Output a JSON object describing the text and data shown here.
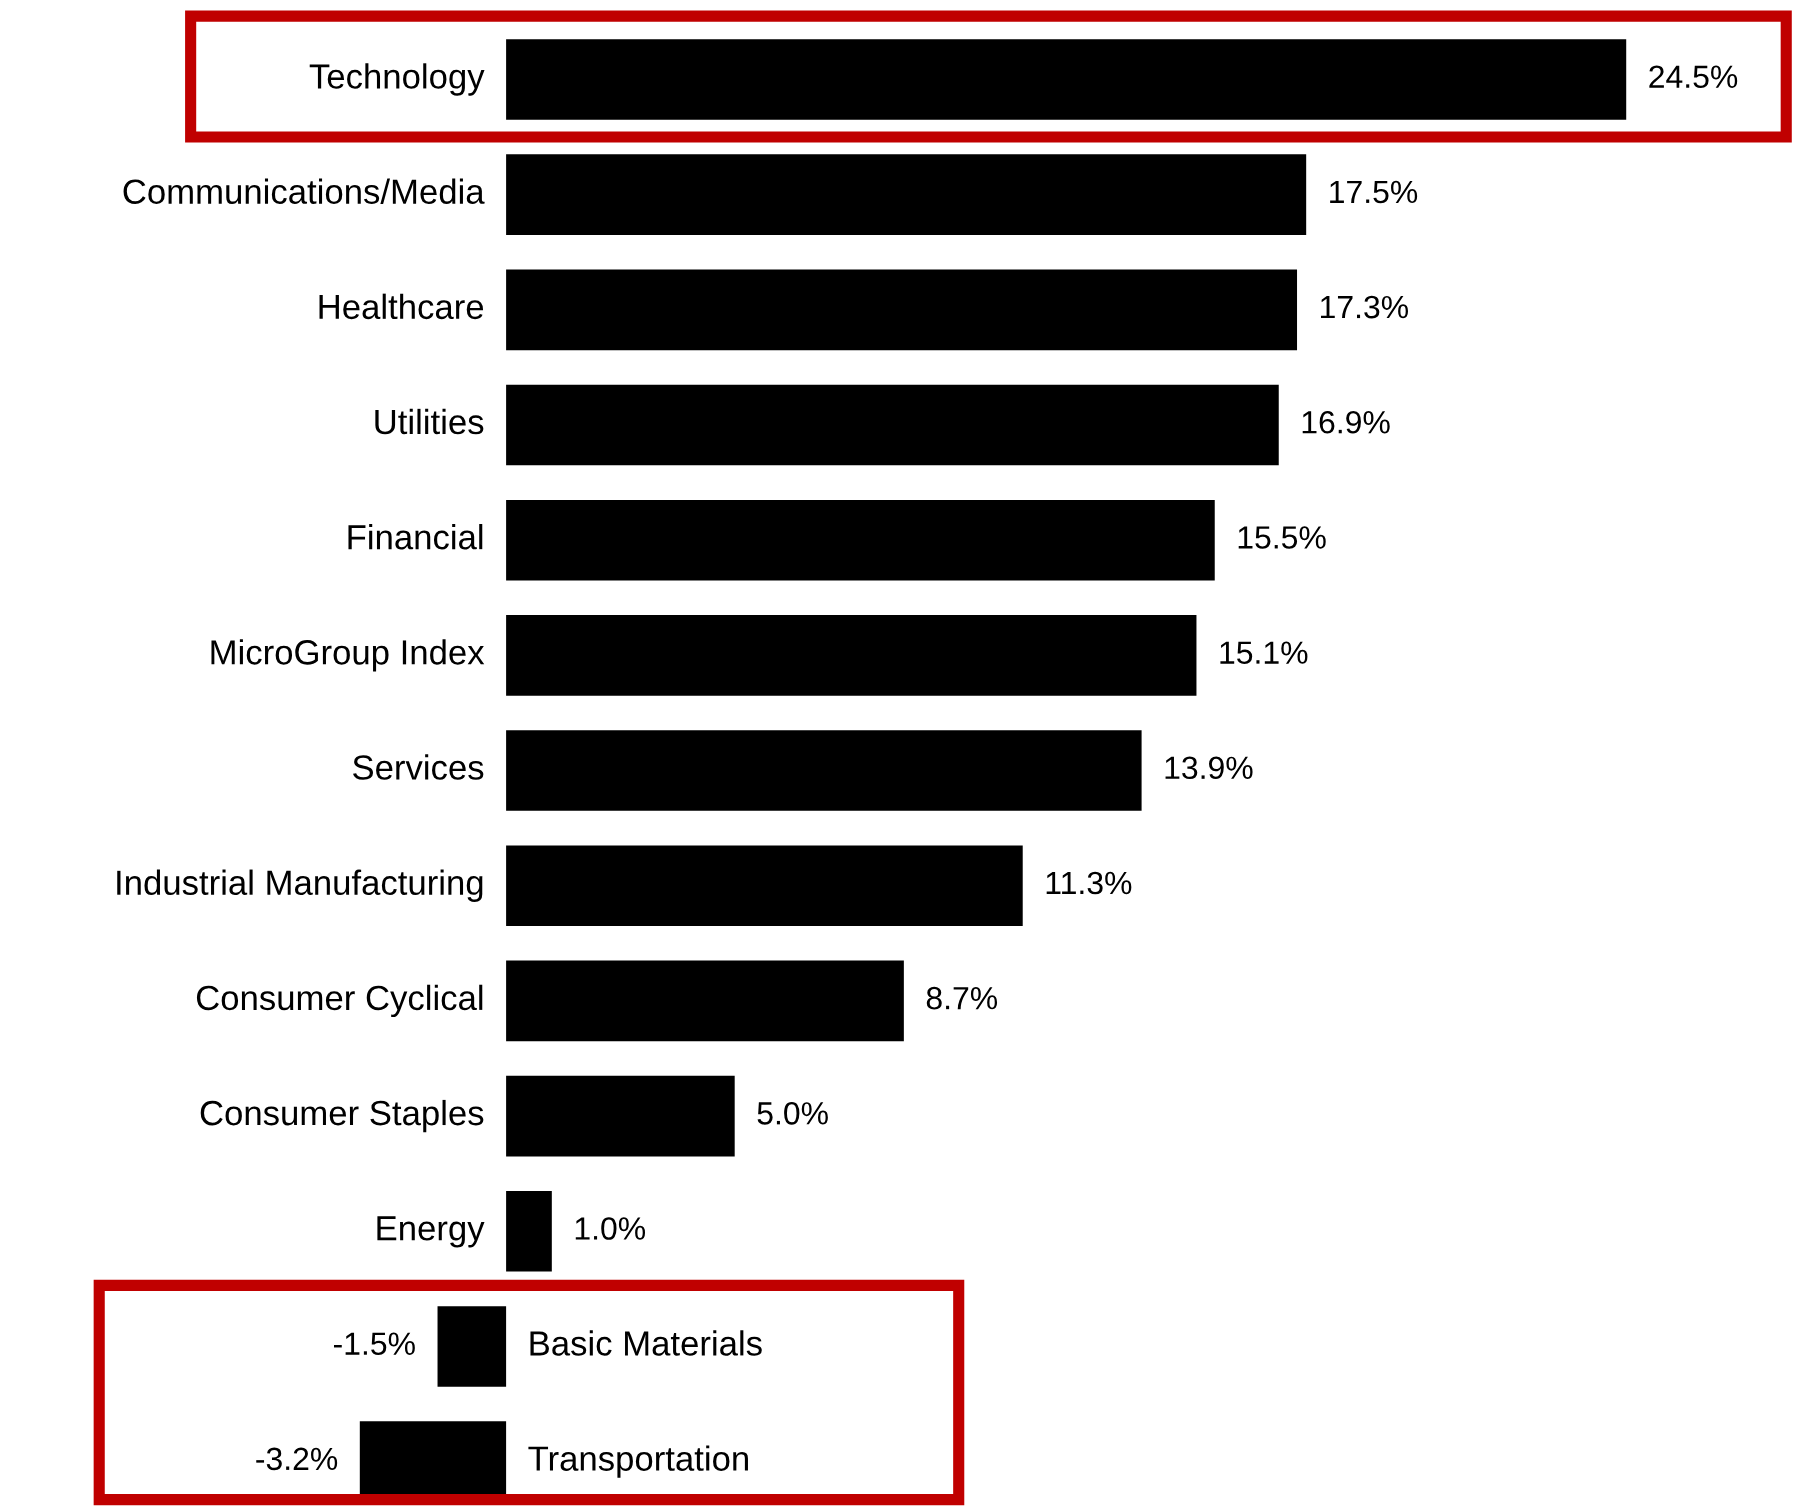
{
  "chart_data": {
    "type": "bar",
    "orientation": "horizontal",
    "categories": [
      "Technology",
      "Communications/Media",
      "Healthcare",
      "Utilities",
      "Financial",
      "MicroGroup Index",
      "Services",
      "Industrial Manufacturing",
      "Consumer Cyclical",
      "Consumer Staples",
      "Energy",
      "Basic Materials",
      "Transportation"
    ],
    "values": [
      24.5,
      17.5,
      17.3,
      16.9,
      15.5,
      15.1,
      13.9,
      11.3,
      8.7,
      5.0,
      1.0,
      -1.5,
      -3.2
    ],
    "value_labels": [
      "24.5%",
      "17.5%",
      "17.3%",
      "16.9%",
      "15.5%",
      "15.1%",
      "13.9%",
      "11.3%",
      "8.7%",
      "5.0%",
      "1.0%",
      "-1.5%",
      "-3.2%"
    ],
    "color": "#000000",
    "xlim": [
      -11.07,
      28.17
    ],
    "tick_labels": "y",
    "legend": false
  }
}
